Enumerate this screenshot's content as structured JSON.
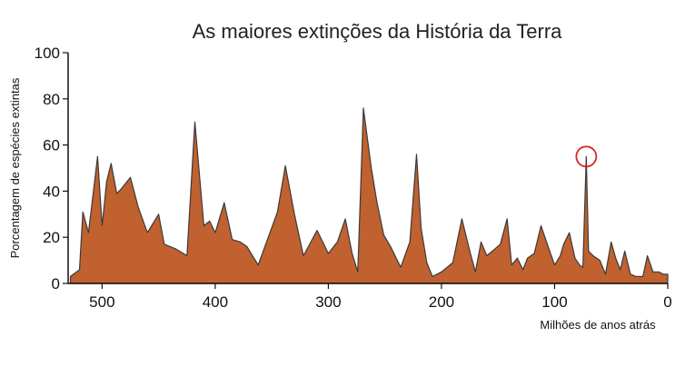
{
  "chart_data": {
    "type": "area",
    "title": "As maiores extinções da História da Terra",
    "xlabel": "Milhões de anos atrás",
    "ylabel": "Porcentagem de espécies extintas",
    "xlim": [
      530,
      0
    ],
    "ylim": [
      0,
      100
    ],
    "x_ticks": [
      "500",
      "400",
      "300",
      "200",
      "100",
      "0"
    ],
    "x_tick_values": [
      500,
      400,
      300,
      200,
      100,
      0
    ],
    "y_ticks": [
      "0",
      "20",
      "40",
      "60",
      "80",
      "100"
    ],
    "y_tick_values": [
      0,
      20,
      40,
      60,
      80,
      100
    ],
    "grid": false,
    "colors": {
      "fill": "#c0612f",
      "stroke": "#3a3a3a",
      "highlight": "#e02020",
      "axis": "#111111"
    },
    "highlight_point": {
      "x": 72,
      "y": 55
    },
    "series": [
      {
        "x": [
          528,
          520,
          517,
          512,
          504,
          500,
          496,
          492,
          487,
          483,
          475,
          468,
          460,
          450,
          445,
          435,
          425,
          418,
          410,
          405,
          400,
          392,
          385,
          378,
          372,
          362,
          345,
          338,
          330,
          322,
          310,
          300,
          292,
          285,
          279,
          274,
          269,
          262,
          257,
          251,
          245,
          240,
          236,
          228,
          222,
          218,
          213,
          208,
          200,
          190,
          182,
          175,
          170,
          165,
          160,
          155,
          148,
          142,
          138,
          133,
          128,
          124,
          118,
          112,
          105,
          100,
          95,
          92,
          87,
          82,
          78,
          75,
          72,
          70,
          66,
          60,
          55,
          50,
          46,
          42,
          38,
          33,
          28,
          22,
          18,
          13,
          8,
          4,
          0
        ],
        "y": [
          3,
          6,
          31,
          22,
          55,
          25,
          44,
          52,
          39,
          41,
          46,
          33,
          22,
          30,
          17,
          15,
          12,
          70,
          25,
          27,
          22,
          35,
          19,
          18,
          16,
          8,
          31,
          51,
          30,
          12,
          23,
          13,
          18,
          28,
          13,
          5,
          76,
          50,
          35,
          21,
          16,
          11,
          7,
          18,
          56,
          24,
          9,
          3,
          5,
          9,
          28,
          14,
          5,
          18,
          12,
          14,
          17,
          28,
          8,
          11,
          6,
          11,
          13,
          25,
          15,
          8,
          12,
          17,
          22,
          11,
          8,
          7,
          55,
          14,
          12,
          10,
          4,
          18,
          11,
          6,
          14,
          4,
          3,
          3,
          12,
          5,
          5,
          4,
          4
        ]
      }
    ]
  }
}
